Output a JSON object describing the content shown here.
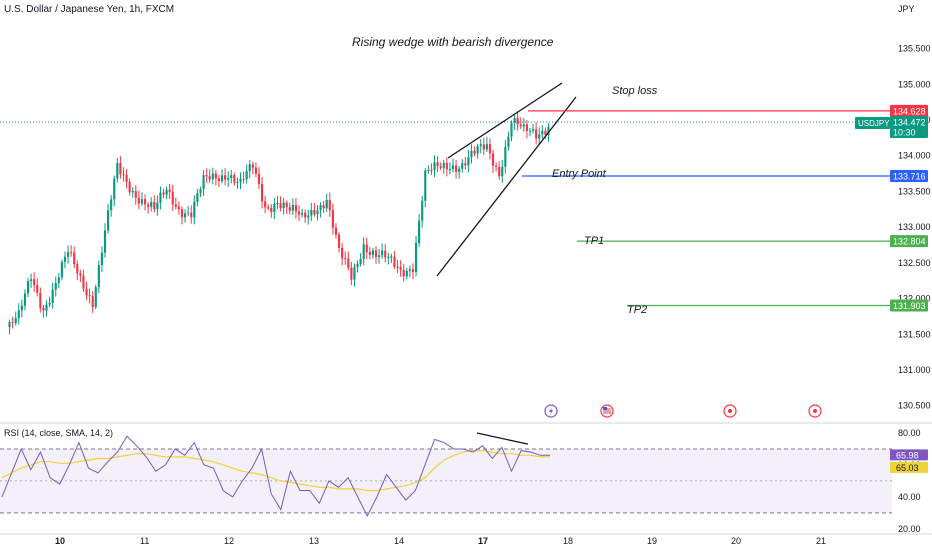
{
  "header": {
    "symbol_title": "U.S. Dollar / Japanese Yen, 1h, FXCM",
    "currency": "JPY"
  },
  "chart_data": {
    "type": "candlestick",
    "title": "Rising wedge with bearish divergence",
    "price_axis": {
      "ticks": [
        "135.500",
        "135.000",
        "134.500",
        "134.000",
        "133.500",
        "133.000",
        "132.500",
        "132.000",
        "131.500",
        "131.000",
        "130.500"
      ],
      "range": [
        130.3,
        135.9
      ]
    },
    "time_axis": {
      "ticks": [
        "10",
        "11",
        "12",
        "13",
        "14",
        "17",
        "18",
        "19",
        "20",
        "21"
      ]
    },
    "close_trend": [
      131.6,
      131.7,
      132.3,
      131.9,
      132.2,
      132.6,
      132.3,
      132.0,
      132.9,
      133.8,
      133.6,
      133.4,
      133.2,
      133.5,
      133.3,
      133.2,
      133.6,
      133.7,
      133.8,
      133.6,
      133.8,
      133.3,
      133.4,
      133.2,
      133.1,
      133.3,
      133.4,
      132.6,
      132.3,
      132.8,
      132.6,
      132.5,
      132.4,
      132.5,
      133.7,
      133.8,
      133.9,
      133.9,
      134.0,
      134.1,
      133.8,
      134.5,
      134.3,
      134.3,
      134.472
    ],
    "levels": [
      {
        "label": "Stop loss",
        "badge": "134.628",
        "price": 134.628,
        "color": "#f23645"
      },
      {
        "label": "Entry Point",
        "badge": "133.716",
        "price": 133.716,
        "color": "#2962ff"
      },
      {
        "label": "TP1",
        "badge": "132.804",
        "price": 132.804,
        "color": "#4caf50"
      },
      {
        "label": "TP2",
        "badge": "131.903",
        "price": 131.903,
        "color": "#4caf50"
      }
    ],
    "current": {
      "symbol": "USDJPY",
      "price": "134.472",
      "countdown": "10:30",
      "value": 134.472,
      "color": "#089981"
    },
    "candle_colors": {
      "up": "#089981",
      "down": "#f23645"
    }
  },
  "rsi": {
    "label": "RSI (14, close, SMA, 14, 2)",
    "ticks": [
      "80.00",
      "60.00",
      "40.00",
      "20.00"
    ],
    "range": [
      18,
      85
    ],
    "upper_band": 70,
    "middle_band": 50,
    "lower_band": 30,
    "rsi_badge": "65.98",
    "sma_badge": "65.03",
    "rsi_value": 65.98,
    "sma_value": 65.03,
    "rsi_color": "#7e57c2",
    "sma_color": "#f0d33b",
    "rsi_series": [
      40,
      55,
      70,
      57,
      68,
      52,
      48,
      60,
      74,
      58,
      55,
      62,
      68,
      78,
      72,
      65,
      56,
      60,
      70,
      66,
      74,
      60,
      58,
      44,
      40,
      50,
      58,
      70,
      42,
      32,
      56,
      44,
      44,
      36,
      50,
      46,
      52,
      40,
      28,
      40,
      54,
      46,
      38,
      44,
      60,
      76,
      74,
      70,
      70,
      68,
      72,
      64,
      71,
      56,
      69,
      68,
      66,
      66
    ],
    "sma_series": [
      52,
      55,
      58,
      60,
      62,
      62,
      61,
      61,
      62,
      63,
      64,
      64,
      65,
      66,
      67,
      67,
      66,
      65,
      65,
      65,
      64,
      63,
      62,
      60,
      58,
      56,
      55,
      54,
      52,
      50,
      49,
      48,
      47,
      46,
      46,
      45,
      45,
      45,
      44,
      44,
      45,
      46,
      47,
      49,
      52,
      58,
      63,
      66,
      68,
      69,
      69,
      68,
      67,
      67,
      66,
      66,
      65,
      65.03
    ]
  },
  "events": [
    "lightning-icon",
    "us-flag-icon",
    "calendar-event-icon",
    "calendar-event-icon"
  ]
}
